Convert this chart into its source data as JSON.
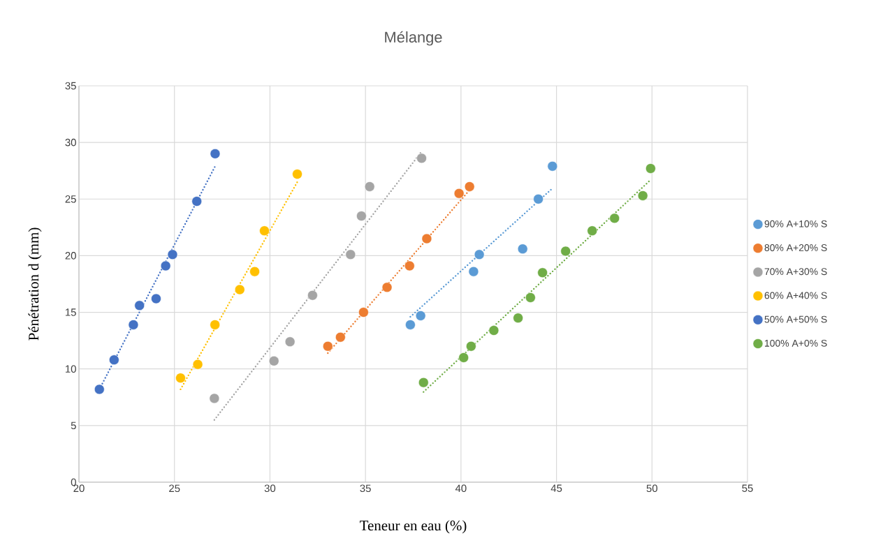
{
  "chart_data": {
    "type": "scatter",
    "title": "Mélange",
    "xlabel": "Teneur en eau (%)",
    "ylabel": "Pénétration d (mm)",
    "xlim": [
      20,
      55
    ],
    "ylim": [
      0,
      35
    ],
    "xticks": [
      20,
      25,
      30,
      35,
      40,
      45,
      50,
      55
    ],
    "yticks": [
      0,
      5,
      10,
      15,
      20,
      25,
      30,
      35
    ],
    "grid": true,
    "legend": "right",
    "marker": "circle",
    "series": [
      {
        "name": "90% A+10% S",
        "color": "#5b9bd5",
        "x": [
          37.35,
          37.89,
          40.66,
          40.96,
          43.23,
          44.05,
          44.79
        ],
        "values": [
          13.9,
          14.7,
          18.6,
          20.1,
          20.6,
          25.0,
          27.9
        ]
      },
      {
        "name": "80% A+20% S",
        "color": "#ed7d31",
        "x": [
          33.03,
          33.69,
          34.9,
          36.13,
          37.31,
          38.21,
          39.9,
          40.45
        ],
        "values": [
          12.0,
          12.8,
          15.0,
          17.2,
          19.1,
          21.5,
          25.5,
          26.1
        ]
      },
      {
        "name": "70% A+30% S",
        "color": "#a5a5a5",
        "x": [
          27.09,
          30.21,
          31.05,
          32.23,
          34.22,
          34.79,
          35.22,
          37.94
        ],
        "values": [
          7.4,
          10.7,
          12.4,
          16.5,
          20.1,
          23.5,
          26.1,
          28.6
        ]
      },
      {
        "name": "60% A+40% S",
        "color": "#ffc000",
        "x": [
          25.32,
          26.22,
          27.12,
          28.42,
          29.2,
          29.71,
          31.43
        ],
        "values": [
          9.2,
          10.4,
          13.9,
          17.0,
          18.6,
          22.2,
          27.2
        ]
      },
      {
        "name": "50% A+50% S",
        "color": "#4472c4",
        "x": [
          21.07,
          21.84,
          22.85,
          23.17,
          24.04,
          24.54,
          24.9,
          26.17,
          27.13
        ],
        "values": [
          8.2,
          10.8,
          13.9,
          15.6,
          16.2,
          19.1,
          20.1,
          24.8,
          29.0
        ]
      },
      {
        "name": "100% A+0% S",
        "color": "#70ad47",
        "x": [
          38.04,
          40.14,
          40.53,
          41.72,
          42.99,
          43.64,
          44.27,
          45.48,
          46.87,
          48.04,
          49.52,
          49.93
        ],
        "values": [
          8.8,
          11.0,
          12.0,
          13.4,
          14.5,
          16.3,
          18.5,
          20.4,
          22.2,
          23.3,
          25.3,
          27.7
        ]
      },
      {
        "type": "line",
        "color": "#5b9bd5",
        "marker": "none",
        "line_style": "dotted",
        "x": [
          37.35,
          44.79
        ],
        "values": [
          14.6,
          25.95
        ]
      },
      {
        "type": "line",
        "color": "#ed7d31",
        "marker": "none",
        "line_style": "dotted",
        "x": [
          33.03,
          40.45
        ],
        "values": [
          11.4,
          25.8
        ]
      },
      {
        "type": "line",
        "color": "#a5a5a5",
        "marker": "none",
        "line_style": "dotted",
        "x": [
          27.09,
          37.94
        ],
        "values": [
          5.5,
          29.2
        ]
      },
      {
        "type": "line",
        "color": "#ffc000",
        "marker": "none",
        "line_style": "dotted",
        "x": [
          25.32,
          31.43
        ],
        "values": [
          8.2,
          26.5
        ]
      },
      {
        "type": "line",
        "color": "#4472c4",
        "marker": "none",
        "line_style": "dotted",
        "x": [
          21.07,
          27.13
        ],
        "values": [
          8.2,
          27.9
        ]
      },
      {
        "type": "line",
        "color": "#70ad47",
        "marker": "none",
        "line_style": "dotted",
        "x": [
          38.04,
          49.93
        ],
        "values": [
          7.97,
          26.7
        ]
      }
    ]
  }
}
